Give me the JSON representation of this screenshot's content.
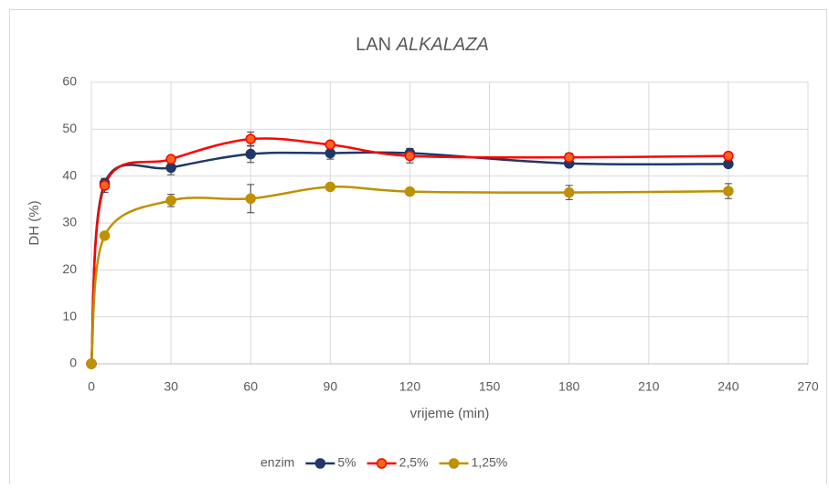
{
  "chart_data": {
    "type": "line",
    "title": {
      "text": "LAN",
      "italic": "ALKALAZA"
    },
    "x_label": "vrijeme (min)",
    "y_label": "DH (%)",
    "legend_title": "enzim",
    "legend": "bottom",
    "x": [
      0,
      5,
      30,
      60,
      90,
      120,
      180,
      240
    ],
    "series": [
      {
        "name": "5%",
        "color": "#1f3868",
        "marker_fill": "#1f3868",
        "values": [
          0,
          38.5,
          41.8,
          44.7,
          44.9,
          44.9,
          42.7,
          42.6
        ],
        "errors": [
          0,
          1,
          1.5,
          1.8,
          1.3,
          1,
          0.6,
          0.5
        ]
      },
      {
        "name": "2,5%",
        "color": "#ff0000",
        "marker_fill": "#f4661b",
        "values": [
          0,
          38,
          43.6,
          47.9,
          46.7,
          44.3,
          44,
          44.3
        ],
        "errors": [
          0,
          1.5,
          0.7,
          1.5,
          0.7,
          1.5,
          0.9,
          0.6
        ]
      },
      {
        "name": "1,25%",
        "color": "#bf9000",
        "marker_fill": "#bf9000",
        "values": [
          0,
          27.3,
          34.8,
          35.2,
          37.7,
          36.7,
          36.5,
          36.8
        ],
        "errors": [
          0,
          0.5,
          1.3,
          3,
          0.5,
          0.7,
          1.5,
          1.6
        ]
      }
    ],
    "xlim": [
      0,
      270
    ],
    "xticks": [
      0,
      30,
      60,
      90,
      120,
      150,
      180,
      210,
      240,
      270
    ],
    "ylim": [
      0,
      60
    ],
    "yticks": [
      0,
      10,
      20,
      30,
      40,
      50,
      60
    ],
    "grid": true,
    "smooth": true
  }
}
